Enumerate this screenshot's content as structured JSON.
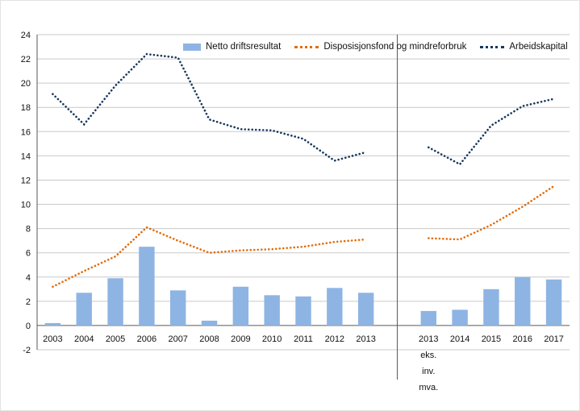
{
  "chart_data": {
    "type": "bar",
    "title": "",
    "xlabel": "",
    "ylabel": "",
    "ylim": [
      -2,
      24
    ],
    "ytick_step": 2,
    "grid": true,
    "legend_position": "top",
    "separator_after_index": 10,
    "categories": [
      "2003",
      "2004",
      "2005",
      "2006",
      "2007",
      "2008",
      "2009",
      "2010",
      "2011",
      "2012",
      "2013",
      "2013\neks.\ninv.\nmva.",
      "2014",
      "2015",
      "2016",
      "2017"
    ],
    "series": [
      {
        "name": "Netto driftsresultat",
        "type": "bar",
        "color": "#8eb4e3",
        "values": [
          0.2,
          2.7,
          3.9,
          6.5,
          2.9,
          0.4,
          3.2,
          2.5,
          2.4,
          3.1,
          2.7,
          1.2,
          1.3,
          3.0,
          4.0,
          3.8
        ]
      },
      {
        "name": "Disposisjonsfond og mindreforbruk",
        "type": "dotted-line",
        "color": "#e36c0a",
        "values": [
          3.2,
          4.5,
          5.7,
          8.1,
          7.0,
          6.0,
          6.2,
          6.3,
          6.5,
          6.9,
          7.1,
          7.2,
          7.1,
          8.3,
          9.8,
          11.5
        ]
      },
      {
        "name": "Arbeidskapital",
        "type": "dotted-line",
        "color": "#17375e",
        "values": [
          19.1,
          16.6,
          19.8,
          22.4,
          22.1,
          17.0,
          16.2,
          16.1,
          15.4,
          13.6,
          14.3,
          14.7,
          13.3,
          16.5,
          18.1,
          18.7
        ]
      }
    ]
  }
}
